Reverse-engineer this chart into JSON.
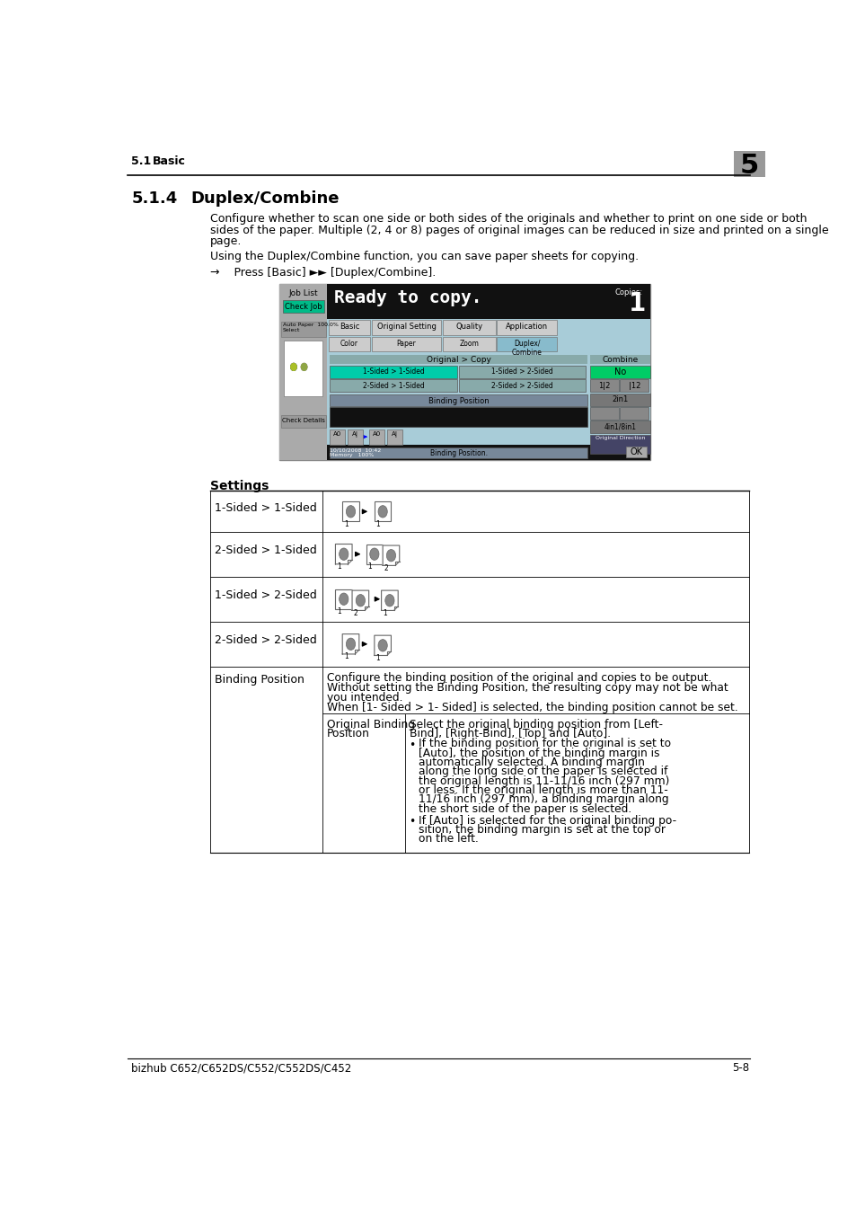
{
  "page_bg": "#ffffff",
  "header_text": "5.1",
  "header_text2": "Basic",
  "chapter_num": "5",
  "section_num": "5.1.4",
  "section_title": "Duplex/Combine",
  "para1_line1": "Configure whether to scan one side or both sides of the originals and whether to print on one side or both",
  "para1_line2": "sides of the paper. Multiple (2, 4 or 8) pages of original images can be reduced in size and printed on a single",
  "para1_line3": "page.",
  "para2": "Using the Duplex/Combine function, you can save paper sheets for copying.",
  "arrow_line": "→    Press [Basic] ►► [Duplex/Combine].",
  "settings_label": "Settings",
  "row1_label": "1-Sided > 1-Sided",
  "row2_label": "2-Sided > 1-Sided",
  "row3_label": "1-Sided > 2-Sided",
  "row4_label": "2-Sided > 2-Sided",
  "row5_label": "Binding Position",
  "bp_desc1": "Configure the binding position of the original and copies to be output.",
  "bp_desc2": "Without setting the Binding Position, the resulting copy may not be what",
  "bp_desc3": "you intended.",
  "bp_desc4": "When [1- Sided > 1- Sided] is selected, the binding position cannot be set.",
  "obp_label1": "Original Binding",
  "obp_label2": "Position",
  "obp_text1": "Select the original binding position from [Left-",
  "obp_text2": "Bind], [Right-Bind], [Top] and [Auto].",
  "obp_bullet1_lines": [
    "If the binding position for the original is set to",
    "[Auto], the position of the binding margin is",
    "automatically selected. A binding margin",
    "along the long side of the paper is selected if",
    "the original length is 11-11/16 inch (297 mm)",
    "or less. If the original length is more than 11-",
    "11/16 inch (297 mm), a binding margin along",
    "the short side of the paper is selected."
  ],
  "obp_bullet2_lines": [
    "If [Auto] is selected for the original binding po-",
    "sition, the binding margin is set at the top or",
    "on the left."
  ],
  "footer_left": "bizhub C652/C652DS/C552/C552DS/C452",
  "footer_right": "5-8",
  "screen_bg": "#000000",
  "screen_light_bg": "#a8cdd8",
  "screen_tab_bg": "#888888",
  "screen_green": "#00cc88",
  "screen_cyan": "#00cccc"
}
